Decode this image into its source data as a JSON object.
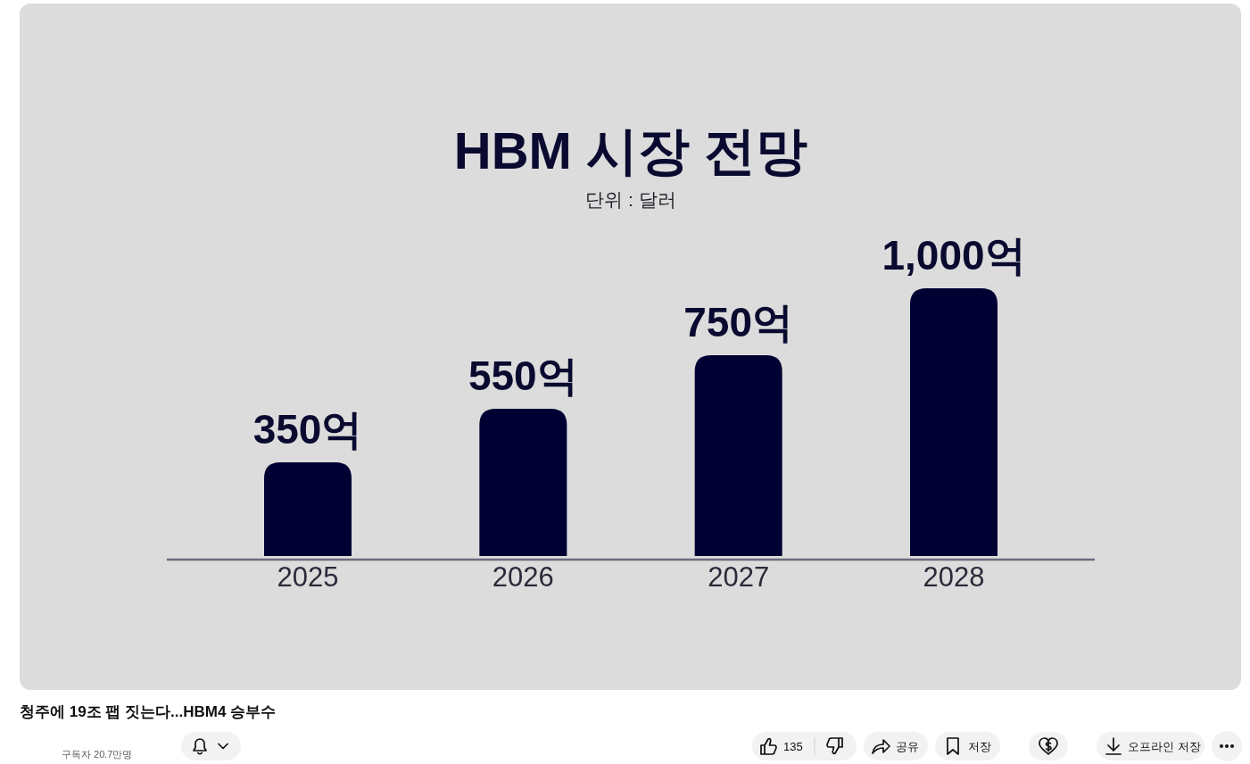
{
  "chart_data": {
    "type": "bar",
    "title": "HBM 시장 전망",
    "subtitle": "단위 : 달러",
    "categories": [
      "2025",
      "2026",
      "2027",
      "2028"
    ],
    "values": [
      350,
      550,
      750,
      1000
    ],
    "value_labels": [
      "350억",
      "550억",
      "750억",
      "1,000억"
    ],
    "color": "#000033",
    "annotations": [
      "청주에 19조 팹 짓는다...HBM4 승부수",
      "구독자 20.7만명",
      "135",
      "공유",
      "저장",
      "오프라인 저장"
    ]
  }
}
